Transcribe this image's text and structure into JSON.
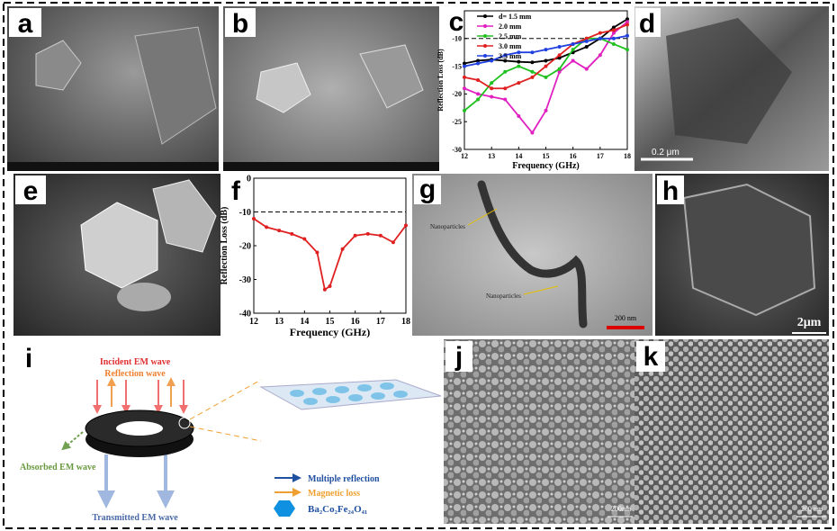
{
  "panels": [
    "a",
    "b",
    "c",
    "d",
    "e",
    "f",
    "g",
    "h",
    "i",
    "j",
    "k"
  ],
  "chart_data": [
    {
      "type": "line",
      "x_label": "Frequency (GHz)",
      "y_label": "Reflection Loss (dB)",
      "x": [
        12,
        12.5,
        13,
        13.5,
        14,
        14.5,
        15,
        15.5,
        16,
        16.5,
        17,
        17.5,
        18
      ],
      "series": [
        {
          "name": "d= 1.5 mm",
          "color": "#000000",
          "values": [
            -14.5,
            -14,
            -13.8,
            -14,
            -14.2,
            -14.3,
            -14,
            -13.5,
            -12.5,
            -11.5,
            -10,
            -8,
            -6.5
          ]
        },
        {
          "name": "2.0 mm",
          "color": "#e020c0",
          "values": [
            -19,
            -20,
            -20.5,
            -21,
            -24,
            -27,
            -23,
            -16,
            -14,
            -15.5,
            -13,
            -9,
            -7
          ]
        },
        {
          "name": "2.5 mm",
          "color": "#20c020",
          "values": [
            -23,
            -21,
            -18,
            -16,
            -15,
            -16,
            -17,
            -15.5,
            -12,
            -10,
            -10,
            -11,
            -12
          ]
        },
        {
          "name": "3.0 mm",
          "color": "#e02020",
          "values": [
            -17,
            -17.5,
            -19,
            -19,
            -18,
            -17,
            -15,
            -13,
            -11,
            -10,
            -9,
            -8.5,
            -7.5
          ]
        },
        {
          "name": "3.5 mm",
          "color": "#2040e0",
          "values": [
            -15,
            -14.5,
            -14,
            -13,
            -12.5,
            -12.5,
            -12,
            -11.5,
            -11,
            -10.5,
            -10,
            -10,
            -9.5
          ]
        }
      ],
      "xlim": [
        12,
        18
      ],
      "xticks": [
        12,
        13,
        14,
        15,
        16,
        17,
        18
      ],
      "ylim": [
        -30,
        -5
      ],
      "yticks": [
        -30,
        -25,
        -20,
        -15,
        -10
      ],
      "hline": -10
    },
    {
      "type": "line",
      "x_label": "Frequency (GHz)",
      "y_label": "Reflection Loss (dB)",
      "x": [
        12,
        12.5,
        13,
        13.5,
        14,
        14.5,
        14.8,
        15,
        15.5,
        16,
        16.5,
        17,
        17.5,
        18
      ],
      "series": [
        {
          "color": "#e02020",
          "values": [
            -12,
            -14.5,
            -15.5,
            -16.5,
            -18,
            -22,
            -33,
            -32,
            -21,
            -17,
            -16.5,
            -17,
            -19,
            -14
          ]
        }
      ],
      "xlim": [
        12,
        18
      ],
      "xticks": [
        12,
        13,
        14,
        15,
        16,
        17,
        18
      ],
      "ylim": [
        -40,
        0
      ],
      "yticks": [
        -40,
        -30,
        -20,
        -10,
        0
      ],
      "hline": -10
    }
  ],
  "scale_bars": {
    "d": "0.2 μm",
    "g": "200 nm",
    "h": "2μm",
    "j": "200nm",
    "k": "200 nm"
  },
  "annotations": {
    "g": [
      "Nanoparticles",
      "Nanoparticles"
    ]
  },
  "schematic": {
    "incident": "Incident  EM wave",
    "reflection": "Reflection wave",
    "absorbed": "Absorbed  EM wave",
    "transmitted": "Transmitted  EM wave",
    "legend": [
      "Multiple reflection",
      "Magnetic loss",
      "Ba₂Co₂Fe₂₄O₄₁"
    ]
  }
}
